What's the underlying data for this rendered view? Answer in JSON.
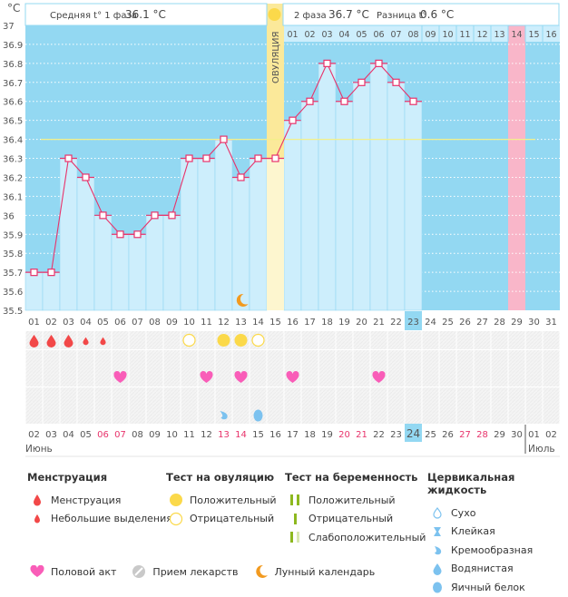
{
  "chart_data": {
    "type": "line",
    "title": "",
    "ylabel": "°C",
    "ylim": [
      35.5,
      37.0
    ],
    "yticks": [
      "37",
      "36.9",
      "36.8",
      "36.7",
      "36.6",
      "36.5",
      "36.4",
      "36.3",
      "36.2",
      "36.1",
      "36",
      "35.9",
      "35.8",
      "35.7",
      "35.6",
      "35.5"
    ],
    "grid": true,
    "cycle_days": [
      "01",
      "02",
      "03",
      "04",
      "05",
      "06",
      "07",
      "08",
      "09",
      "10",
      "11",
      "12",
      "13",
      "14",
      "15",
      "16",
      "17",
      "18",
      "19",
      "20",
      "21",
      "22",
      "23",
      "24",
      "25",
      "26",
      "27",
      "28",
      "29",
      "30",
      "31"
    ],
    "phase2_days": [
      "01",
      "02",
      "03",
      "04",
      "05",
      "06",
      "07",
      "08",
      "09",
      "10",
      "11",
      "12",
      "13",
      "14",
      "15",
      "16"
    ],
    "temperatures": [
      35.7,
      35.7,
      36.3,
      36.2,
      36.0,
      35.9,
      35.9,
      36.0,
      36.0,
      36.3,
      36.3,
      36.4,
      36.2,
      36.3,
      36.3,
      36.5,
      36.6,
      36.8,
      36.6,
      36.7,
      36.8,
      36.7,
      36.6
    ],
    "coverline": 36.4,
    "ovulation_day": 15,
    "today_cycle_day": 23,
    "expected_period_day": 29,
    "moon_day": 13,
    "calendar_dates": [
      "02",
      "03",
      "04",
      "05",
      "06",
      "07",
      "08",
      "09",
      "10",
      "11",
      "12",
      "13",
      "14",
      "15",
      "16",
      "17",
      "18",
      "19",
      "20",
      "21",
      "22",
      "23",
      "24",
      "25",
      "26",
      "27",
      "28",
      "29",
      "30",
      "01",
      "02"
    ],
    "weekend_dates_idx": [
      4,
      5,
      11,
      12,
      18,
      19,
      25,
      26
    ],
    "month_labels": [
      {
        "label": "Июнь",
        "start_idx": 0
      },
      {
        "label": "Июль",
        "start_idx": 29
      }
    ],
    "today_date_idx": 22,
    "menstruation": [
      {
        "day": 1,
        "kind": "heavy"
      },
      {
        "day": 2,
        "kind": "heavy"
      },
      {
        "day": 3,
        "kind": "heavy"
      },
      {
        "day": 4,
        "kind": "light"
      },
      {
        "day": 5,
        "kind": "light"
      }
    ],
    "ovulation_tests": [
      {
        "day": 10,
        "result": "negative"
      },
      {
        "day": 12,
        "result": "positive"
      },
      {
        "day": 13,
        "result": "positive"
      },
      {
        "day": 14,
        "result": "negative"
      }
    ],
    "intercourse_days": [
      6,
      11,
      13,
      16,
      21
    ],
    "cervical_fluid": [
      {
        "day": 12,
        "kind": "creamy"
      },
      {
        "day": 14,
        "kind": "eggwhite"
      }
    ]
  },
  "header": {
    "phase1_label": "Средняя t° 1 фаза",
    "phase1_value": "36.1 °C",
    "phase2_label": "2 фаза",
    "phase2_value": "36.7 °C",
    "diff_label": "Разница t°",
    "diff_value": "0.6 °C",
    "ovulation_label": "ОВУЛЯЦИЯ",
    "unit": "°C"
  },
  "colors": {
    "chart_bg": "#93d8f2",
    "bar_fill": "#cdeefc",
    "line": "#e8336b",
    "ovulation": "#fbe99a",
    "ovulation_light": "#fdf6cf",
    "period_expected": "#f9b6c9",
    "coverline": "#f3f08a",
    "sun": "#fbd94a",
    "heart": "#f95db8",
    "blood": "#f24848",
    "moon": "#f29a1f",
    "fluid": "#7cc2ef",
    "preg_green": "#8db81f",
    "preg_light": "#d9e8b0",
    "weekend": "#e8336b"
  },
  "legend": {
    "menstruation": {
      "title": "Менструация",
      "items": [
        "Менструация",
        "Небольшие выделения"
      ]
    },
    "ovulation_test": {
      "title": "Тест на овуляцию",
      "items": [
        "Положительный",
        "Отрицательный"
      ]
    },
    "pregnancy_test": {
      "title": "Тест на беременность",
      "items": [
        "Положительный",
        "Отрицательный",
        "Слабоположительный"
      ]
    },
    "cervical": {
      "title": "Цервикальная жидкость",
      "items": [
        "Сухо",
        "Клейкая",
        "Кремообразная",
        "Водянистая",
        "Яичный белок"
      ]
    },
    "other": [
      "Половой акт",
      "Прием лекарств",
      "Лунный календарь"
    ]
  }
}
